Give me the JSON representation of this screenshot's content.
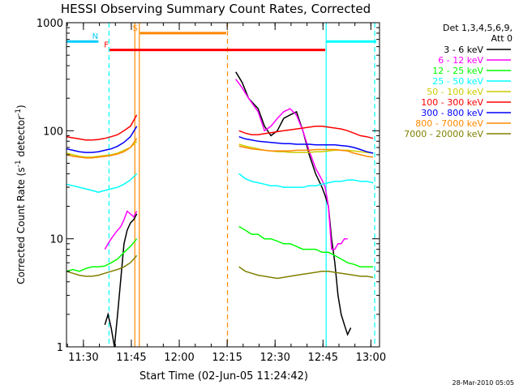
{
  "chart_data": {
    "type": "line",
    "title": "HESSI Observing Summary Count Rates, Corrected",
    "xlabel": "Start Time (02-Jun-05 11:24:42)",
    "ylabel": "Corrected Count Rate (s⁻¹ detector⁻¹)",
    "ylabel_base": "Corrected Count Rate (s",
    "ylabel_mid": " detector",
    "ylabel_end": ")",
    "ylabel_sup": "-1",
    "x_unit": "minutes since 11:24:42",
    "xlim": [
      0,
      98
    ],
    "ylim": [
      1,
      1000
    ],
    "yscale": "log",
    "x_ticks": [
      {
        "label": "11:30",
        "x": 5.3
      },
      {
        "label": "11:45",
        "x": 20.3
      },
      {
        "label": "12:00",
        "x": 35.3
      },
      {
        "label": "12:15",
        "x": 50.3
      },
      {
        "label": "12:30",
        "x": 65.3
      },
      {
        "label": "12:45",
        "x": 80.3
      },
      {
        "label": "13:00",
        "x": 95.3
      }
    ],
    "y_ticks": [
      {
        "label": "1",
        "y": 1
      },
      {
        "label": "10",
        "y": 10
      },
      {
        "label": "100",
        "y": 100
      },
      {
        "label": "1000",
        "y": 1000
      }
    ],
    "legend": {
      "placement": "right",
      "header_lines": [
        "Det 1,3,4,5,6,9,",
        "Att 0"
      ]
    },
    "series": [
      {
        "name": "3 - 6 keV",
        "color": "#000000",
        "x": [
          0,
          5,
          10,
          12,
          13,
          14,
          15,
          16,
          18,
          19,
          20,
          21,
          22,
          52,
          53,
          55,
          57,
          60,
          62,
          64,
          66,
          68,
          70,
          72,
          74,
          76,
          78,
          80,
          81,
          82,
          83,
          84,
          85,
          86,
          87,
          88,
          89
        ],
        "y": [
          null,
          null,
          null,
          1.6,
          2.0,
          1.5,
          1.0,
          2.0,
          9,
          12,
          14,
          15,
          17,
          null,
          350,
          280,
          200,
          160,
          110,
          90,
          100,
          130,
          140,
          150,
          100,
          60,
          40,
          30,
          25,
          20,
          10,
          6,
          3,
          2,
          1.6,
          1.3,
          1.5
        ]
      },
      {
        "name": "6 - 12 keV",
        "color": "#ff00ff",
        "x": [
          0,
          5,
          12,
          13,
          14,
          15,
          16,
          17,
          18,
          19,
          20,
          21,
          22,
          52,
          53,
          55,
          57,
          60,
          62,
          64,
          66,
          68,
          70,
          72,
          74,
          76,
          78,
          80,
          81,
          82,
          83,
          84,
          85,
          86,
          87,
          88
        ],
        "y": [
          null,
          null,
          8,
          9,
          10,
          11,
          12,
          13,
          15,
          18,
          17,
          16,
          18,
          null,
          300,
          250,
          200,
          150,
          100,
          110,
          130,
          150,
          160,
          140,
          100,
          65,
          45,
          35,
          30,
          20,
          8,
          8,
          9,
          9,
          10,
          10
        ]
      },
      {
        "name": "12 - 25 keV",
        "color": "#00ff00",
        "x": [
          0,
          2,
          4,
          6,
          8,
          10,
          12,
          14,
          16,
          18,
          20,
          22,
          52,
          54,
          56,
          58,
          60,
          62,
          64,
          66,
          68,
          70,
          72,
          74,
          76,
          78,
          80,
          82,
          84,
          86,
          88,
          90,
          92,
          94,
          96
        ],
        "y": [
          5,
          5.2,
          5,
          5.3,
          5.5,
          5.5,
          5.6,
          6,
          6.5,
          7.5,
          8.5,
          10,
          null,
          13,
          12,
          11,
          11,
          10,
          10,
          9.5,
          9,
          9,
          8.5,
          8,
          8,
          8,
          7.5,
          7.5,
          7,
          6.5,
          6,
          5.8,
          5.5,
          5.5,
          5.5
        ]
      },
      {
        "name": "25 - 50 keV",
        "color": "#00ffff",
        "x": [
          0,
          2,
          4,
          6,
          8,
          10,
          12,
          14,
          16,
          18,
          20,
          22,
          52,
          54,
          56,
          58,
          60,
          62,
          64,
          66,
          68,
          70,
          72,
          74,
          76,
          78,
          80,
          82,
          84,
          86,
          88,
          90,
          92,
          94,
          96
        ],
        "y": [
          32,
          31,
          30,
          29,
          28,
          27,
          28,
          29,
          30,
          32,
          35,
          40,
          null,
          40,
          36,
          34,
          33,
          32,
          31,
          31,
          30,
          30,
          30,
          30,
          31,
          31,
          32,
          33,
          34,
          34,
          35,
          35,
          34,
          34,
          33
        ]
      },
      {
        "name": "50 - 100 keV",
        "color": "#cccc00",
        "x": [
          0,
          2,
          4,
          6,
          8,
          10,
          12,
          14,
          16,
          18,
          20,
          22,
          52,
          54,
          56,
          58,
          60,
          62,
          64,
          66,
          68,
          70,
          72,
          74,
          76,
          78,
          80,
          82,
          84,
          86,
          88,
          90,
          92,
          94,
          96
        ],
        "y": [
          62,
          60,
          58,
          57,
          57,
          58,
          59,
          60,
          62,
          66,
          70,
          80,
          null,
          75,
          72,
          70,
          68,
          66,
          65,
          64,
          64,
          63,
          63,
          63,
          63,
          64,
          64,
          65,
          66,
          66,
          66,
          65,
          64,
          63,
          62
        ]
      },
      {
        "name": "100 - 300 keV",
        "color": "#ff0000",
        "x": [
          0,
          2,
          4,
          6,
          8,
          10,
          12,
          14,
          16,
          18,
          20,
          22,
          52,
          54,
          56,
          58,
          60,
          62,
          64,
          66,
          68,
          70,
          72,
          74,
          76,
          78,
          80,
          82,
          84,
          86,
          88,
          90,
          92,
          94,
          96
        ],
        "y": [
          88,
          86,
          84,
          82,
          82,
          83,
          85,
          88,
          92,
          100,
          110,
          140,
          null,
          100,
          95,
          92,
          92,
          94,
          96,
          98,
          100,
          102,
          104,
          106,
          108,
          110,
          110,
          108,
          106,
          104,
          100,
          95,
          90,
          88,
          85
        ]
      },
      {
        "name": "300 - 800 keV",
        "color": "#0000ff",
        "x": [
          0,
          2,
          4,
          6,
          8,
          10,
          12,
          14,
          16,
          18,
          20,
          22,
          52,
          54,
          56,
          58,
          60,
          62,
          64,
          66,
          68,
          70,
          72,
          74,
          76,
          78,
          80,
          82,
          84,
          86,
          88,
          90,
          92,
          94,
          96
        ],
        "y": [
          68,
          66,
          64,
          63,
          63,
          64,
          66,
          68,
          72,
          78,
          88,
          110,
          null,
          88,
          84,
          82,
          80,
          79,
          78,
          77,
          76,
          76,
          75,
          75,
          75,
          74,
          74,
          74,
          74,
          73,
          72,
          70,
          67,
          64,
          62
        ]
      },
      {
        "name": "800 - 7000 keV",
        "color": "#ff8800",
        "x": [
          0,
          2,
          4,
          6,
          8,
          10,
          12,
          14,
          16,
          18,
          20,
          22,
          52,
          54,
          56,
          58,
          60,
          62,
          64,
          66,
          68,
          70,
          72,
          74,
          76,
          78,
          80,
          82,
          84,
          86,
          88,
          90,
          92,
          94,
          96
        ],
        "y": [
          60,
          58,
          57,
          56,
          56,
          57,
          58,
          59,
          61,
          64,
          70,
          85,
          null,
          72,
          70,
          68,
          67,
          66,
          65,
          65,
          65,
          65,
          66,
          66,
          66,
          67,
          67,
          67,
          67,
          66,
          65,
          62,
          60,
          58,
          57
        ]
      },
      {
        "name": "7000 - 20000 keV",
        "color": "#808000",
        "x": [
          0,
          2,
          4,
          6,
          8,
          10,
          12,
          14,
          16,
          18,
          20,
          22,
          52,
          54,
          56,
          58,
          60,
          62,
          64,
          66,
          68,
          70,
          72,
          74,
          76,
          78,
          80,
          82,
          84,
          86,
          88,
          90,
          92,
          94,
          96
        ],
        "y": [
          5,
          4.8,
          4.6,
          4.5,
          4.5,
          4.6,
          4.8,
          5,
          5.2,
          5.5,
          6,
          7,
          null,
          5.5,
          5,
          4.8,
          4.6,
          4.5,
          4.4,
          4.3,
          4.4,
          4.5,
          4.6,
          4.7,
          4.8,
          4.9,
          5,
          5,
          4.9,
          4.8,
          4.7,
          4.6,
          4.5,
          4.5,
          4.4
        ]
      }
    ],
    "markers": [
      {
        "label": "N",
        "color": "#00ccff",
        "x": 10,
        "bar_from": 0,
        "bar_to": 10,
        "bar_y": 670
      },
      {
        "label": "S",
        "color": "#ff8800",
        "x": 22.5,
        "bar_from": 23,
        "bar_to": 50,
        "bar_y": 800
      },
      {
        "label": "F",
        "color": "#ff0000",
        "x": 13.5,
        "bar_from": 13.5,
        "bar_to": 81,
        "bar_y": 560
      }
    ],
    "vertical_lines": [
      {
        "x": 13.3,
        "color": "#00ffff",
        "style": "dash"
      },
      {
        "x": 21.4,
        "color": "#ff8800",
        "style": "solid"
      },
      {
        "x": 22.8,
        "color": "#ff8800",
        "style": "solid"
      },
      {
        "x": 50.4,
        "color": "#ff8800",
        "style": "dash"
      },
      {
        "x": 81.3,
        "color": "#00ffff",
        "style": "solid"
      },
      {
        "x": 96.5,
        "color": "#00ffff",
        "style": "dash"
      }
    ],
    "cyan_bar_right": {
      "from": 81.4,
      "to": 97,
      "y": 670
    },
    "footer_date": "28-Mar-2010 05:05"
  }
}
